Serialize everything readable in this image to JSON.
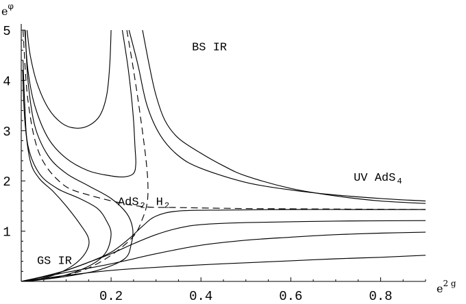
{
  "chart_data": {
    "type": "line",
    "title": "",
    "xlabel": "e^{2g}",
    "ylabel": "e^{φ}",
    "xlabel_parts": {
      "base": "e",
      "sup": "2 g"
    },
    "ylabel_parts": {
      "base": "e",
      "sup": "φ"
    },
    "xlim": [
      0,
      0.9
    ],
    "ylim": [
      0,
      5
    ],
    "x_ticks": [
      0.2,
      0.4,
      0.6,
      0.8
    ],
    "x_tick_labels": [
      "0.2",
      "0.4",
      "0.6",
      "0.8"
    ],
    "y_ticks": [
      1,
      2,
      3,
      4,
      5
    ],
    "y_tick_labels": [
      "1",
      "2",
      "3",
      "4",
      "5"
    ],
    "grid": false,
    "annotations": [
      {
        "text": "BS IR",
        "x": 0.38,
        "y": 4.6
      },
      {
        "text": "UV AdS",
        "sub": "4",
        "x": 0.74,
        "y": 2.0
      },
      {
        "text": "AdS",
        "sub": "2",
        "x": 0.215,
        "y": 1.52
      },
      {
        "text": "H",
        "sub": "2",
        "x": 0.3,
        "y": 1.52
      },
      {
        "text": "GS IR",
        "x": 0.035,
        "y": 0.35
      }
    ],
    "series": [
      {
        "style": "solid",
        "points": [
          [
            0.2,
            5.0
          ],
          [
            0.197,
            4.3
          ],
          [
            0.19,
            3.7
          ],
          [
            0.175,
            3.3
          ],
          [
            0.15,
            3.1
          ],
          [
            0.12,
            3.05
          ],
          [
            0.09,
            3.15
          ],
          [
            0.06,
            3.45
          ],
          [
            0.035,
            3.95
          ],
          [
            0.02,
            4.5
          ],
          [
            0.013,
            5.0
          ]
        ]
      },
      {
        "style": "solid",
        "points": [
          [
            0.225,
            5.0
          ],
          [
            0.237,
            4.3
          ],
          [
            0.245,
            3.7
          ],
          [
            0.25,
            3.2
          ],
          [
            0.253,
            2.7
          ],
          [
            0.255,
            2.35
          ],
          [
            0.25,
            2.15
          ],
          [
            0.23,
            2.08
          ],
          [
            0.2,
            2.1
          ],
          [
            0.15,
            2.2
          ],
          [
            0.1,
            2.45
          ],
          [
            0.06,
            2.85
          ],
          [
            0.03,
            3.5
          ],
          [
            0.015,
            4.2
          ],
          [
            0.008,
            5.0
          ]
        ]
      },
      {
        "style": "solid",
        "points": [
          [
            0.009,
            5.0
          ],
          [
            0.015,
            4.0
          ],
          [
            0.03,
            3.1
          ],
          [
            0.06,
            2.5
          ],
          [
            0.1,
            2.15
          ],
          [
            0.15,
            1.9
          ],
          [
            0.2,
            1.65
          ],
          [
            0.235,
            1.35
          ],
          [
            0.248,
            1.05
          ],
          [
            0.245,
            0.75
          ],
          [
            0.23,
            0.45
          ],
          [
            0.17,
            0.22
          ],
          [
            0.1,
            0.1
          ],
          [
            0.04,
            0.03
          ],
          [
            0.0,
            0.0
          ]
        ]
      },
      {
        "style": "solid",
        "points": [
          [
            0.004,
            4.4
          ],
          [
            0.008,
            3.5
          ],
          [
            0.015,
            2.7
          ],
          [
            0.04,
            2.15
          ],
          [
            0.08,
            1.85
          ],
          [
            0.13,
            1.65
          ],
          [
            0.17,
            1.45
          ],
          [
            0.19,
            1.2
          ],
          [
            0.2,
            0.95
          ],
          [
            0.19,
            0.6
          ],
          [
            0.16,
            0.35
          ],
          [
            0.1,
            0.13
          ],
          [
            0.04,
            0.03
          ],
          [
            0.0,
            0.0
          ]
        ]
      },
      {
        "style": "solid",
        "points": [
          [
            0.003,
            4.2
          ],
          [
            0.008,
            3.2
          ],
          [
            0.02,
            2.4
          ],
          [
            0.04,
            2.05
          ],
          [
            0.07,
            1.8
          ],
          [
            0.1,
            1.5
          ],
          [
            0.13,
            1.15
          ],
          [
            0.15,
            0.85
          ],
          [
            0.145,
            0.6
          ],
          [
            0.12,
            0.35
          ],
          [
            0.08,
            0.15
          ],
          [
            0.04,
            0.05
          ],
          [
            0.0,
            0.0
          ]
        ]
      },
      {
        "style": "solid",
        "points": [
          [
            0.24,
            5.0
          ],
          [
            0.26,
            4.3
          ],
          [
            0.28,
            3.5
          ],
          [
            0.31,
            2.9
          ],
          [
            0.35,
            2.5
          ],
          [
            0.4,
            2.25
          ],
          [
            0.5,
            1.97
          ],
          [
            0.6,
            1.82
          ],
          [
            0.7,
            1.72
          ],
          [
            0.8,
            1.65
          ],
          [
            0.9,
            1.6
          ]
        ]
      },
      {
        "style": "solid",
        "points": [
          [
            0.27,
            5.0
          ],
          [
            0.285,
            4.3
          ],
          [
            0.3,
            3.7
          ],
          [
            0.32,
            3.2
          ],
          [
            0.35,
            2.85
          ],
          [
            0.4,
            2.55
          ],
          [
            0.45,
            2.3
          ],
          [
            0.5,
            2.1
          ],
          [
            0.6,
            1.85
          ],
          [
            0.7,
            1.7
          ],
          [
            0.8,
            1.6
          ],
          [
            0.9,
            1.55
          ]
        ]
      },
      {
        "style": "dashed",
        "points": [
          [
            0.004,
            5.0
          ],
          [
            0.015,
            3.6
          ],
          [
            0.04,
            2.55
          ],
          [
            0.09,
            1.95
          ],
          [
            0.15,
            1.72
          ],
          [
            0.26,
            1.5
          ],
          [
            0.35,
            1.47
          ],
          [
            0.5,
            1.45
          ],
          [
            0.7,
            1.44
          ],
          [
            0.9,
            1.43
          ]
        ]
      },
      {
        "style": "dashed",
        "points": [
          [
            0.235,
            5.0
          ],
          [
            0.25,
            4.2
          ],
          [
            0.265,
            3.3
          ],
          [
            0.278,
            2.4
          ],
          [
            0.282,
            1.9
          ],
          [
            0.28,
            1.55
          ],
          [
            0.27,
            1.25
          ],
          [
            0.25,
            0.9
          ],
          [
            0.2,
            0.52
          ],
          [
            0.14,
            0.23
          ],
          [
            0.07,
            0.07
          ],
          [
            0.0,
            0.0
          ]
        ]
      },
      {
        "style": "solid",
        "points": [
          [
            0.0,
            0.0
          ],
          [
            0.05,
            0.1
          ],
          [
            0.1,
            0.22
          ],
          [
            0.15,
            0.38
          ],
          [
            0.2,
            0.58
          ],
          [
            0.24,
            0.85
          ],
          [
            0.27,
            1.1
          ],
          [
            0.3,
            1.3
          ],
          [
            0.35,
            1.4
          ],
          [
            0.45,
            1.42
          ],
          [
            0.6,
            1.43
          ],
          [
            0.75,
            1.43
          ],
          [
            0.9,
            1.43
          ]
        ]
      },
      {
        "style": "solid",
        "points": [
          [
            0.0,
            0.0
          ],
          [
            0.05,
            0.1
          ],
          [
            0.1,
            0.22
          ],
          [
            0.15,
            0.38
          ],
          [
            0.2,
            0.55
          ],
          [
            0.25,
            0.75
          ],
          [
            0.3,
            0.93
          ],
          [
            0.35,
            1.06
          ],
          [
            0.4,
            1.13
          ],
          [
            0.5,
            1.17
          ],
          [
            0.7,
            1.2
          ],
          [
            0.9,
            1.21
          ]
        ]
      },
      {
        "style": "solid",
        "points": [
          [
            0.0,
            0.0
          ],
          [
            0.05,
            0.09
          ],
          [
            0.1,
            0.18
          ],
          [
            0.2,
            0.35
          ],
          [
            0.3,
            0.55
          ],
          [
            0.4,
            0.72
          ],
          [
            0.5,
            0.82
          ],
          [
            0.6,
            0.88
          ],
          [
            0.7,
            0.93
          ],
          [
            0.8,
            0.96
          ],
          [
            0.9,
            0.98
          ]
        ]
      },
      {
        "style": "solid",
        "points": [
          [
            0.0,
            0.0
          ],
          [
            0.1,
            0.12
          ],
          [
            0.2,
            0.22
          ],
          [
            0.3,
            0.28
          ],
          [
            0.4,
            0.33
          ],
          [
            0.5,
            0.37
          ],
          [
            0.6,
            0.41
          ],
          [
            0.7,
            0.45
          ],
          [
            0.8,
            0.48
          ],
          [
            0.9,
            0.52
          ]
        ]
      }
    ]
  }
}
